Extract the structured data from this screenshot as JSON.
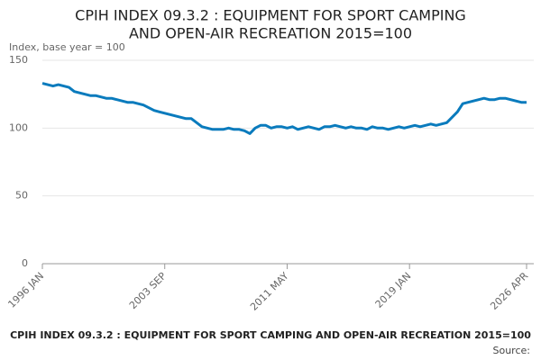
{
  "chart_data": {
    "type": "line",
    "title": [
      "CPIH INDEX 09.3.2 : EQUIPMENT FOR SPORT CAMPING",
      "AND OPEN-AIR RECREATION 2015=100"
    ],
    "y_label": "Index, base year = 100",
    "caption": "CPIH INDEX 09.3.2 : EQUIPMENT FOR SPORT CAMPING AND OPEN-AIR RECREATION 2015=100",
    "source": "Source:",
    "categories": [
      "1996 JAN",
      null,
      null,
      null,
      null,
      null,
      null,
      null,
      null,
      null,
      null,
      null,
      null,
      null,
      null,
      null,
      null,
      null,
      null,
      null,
      null,
      null,
      null,
      "2003 SEP",
      null,
      null,
      null,
      null,
      null,
      null,
      null,
      null,
      null,
      null,
      null,
      null,
      null,
      null,
      null,
      null,
      null,
      null,
      null,
      null,
      null,
      null,
      "2011 MAY",
      null,
      null,
      null,
      null,
      null,
      null,
      null,
      null,
      null,
      null,
      null,
      null,
      null,
      null,
      null,
      null,
      null,
      null,
      null,
      null,
      null,
      null,
      "2019 JAN",
      null,
      null,
      null,
      null,
      null,
      null,
      null,
      null,
      null,
      null,
      null,
      null,
      null,
      null,
      null,
      null,
      null,
      null,
      null,
      null,
      null,
      "2026 APR"
    ],
    "series": [
      {
        "name": "CPIH INDEX 09.3.2",
        "color": "#0a7bbd",
        "values": [
          133,
          132,
          131,
          132,
          131,
          130,
          127,
          126,
          125,
          124,
          124,
          123,
          122,
          122,
          121,
          120,
          119,
          119,
          118,
          117,
          115,
          113,
          112,
          111,
          110,
          109,
          108,
          107,
          107,
          104,
          101,
          100,
          99,
          99,
          99,
          100,
          99,
          99,
          98,
          96,
          100,
          102,
          102,
          100,
          101,
          101,
          100,
          101,
          99,
          100,
          101,
          100,
          99,
          101,
          101,
          102,
          101,
          100,
          101,
          100,
          100,
          99,
          101,
          100,
          100,
          99,
          100,
          101,
          100,
          101,
          102,
          101,
          102,
          103,
          102,
          103,
          104,
          108,
          112,
          118,
          119,
          120,
          121,
          122,
          121,
          121,
          122,
          122,
          121,
          120,
          119,
          119
        ]
      }
    ],
    "ylim": [
      0,
      150
    ],
    "yticks": [
      0,
      50,
      100,
      150
    ],
    "grid": true
  }
}
